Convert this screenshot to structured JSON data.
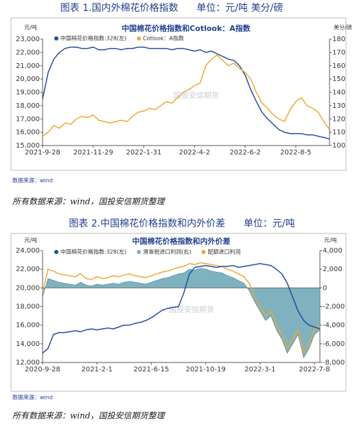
{
  "document": {
    "figure_1_caption": "图表 1.国内外棉花价格指数      单位：元/吨 美分/磅",
    "figure_1_source": "数据来源：wind",
    "figure_1_note": "所有数据来源：wind，国投安信期货整理",
    "figure_2_caption": "图表 2.中国棉花价格指数和内外价差      单位：元/吨",
    "figure_2_source": "数据来源：wind",
    "figure_2_note": "所有数据来源：wind，国投安信期货整理"
  },
  "chart_data": [
    {
      "type": "line",
      "title": "中国棉花价格指数和Cotlook：A指数",
      "watermark": "国投安信期货",
      "y_unit": "元/吨",
      "y2_unit": "美分/磅",
      "grid": false,
      "categories": [
        "2021-9-28",
        null,
        null,
        null,
        null,
        null,
        null,
        null,
        null,
        "2021-11-29",
        null,
        null,
        null,
        null,
        null,
        null,
        null,
        null,
        "2022-1-31",
        null,
        null,
        null,
        null,
        null,
        null,
        null,
        null,
        "2022-4-2",
        null,
        null,
        null,
        null,
        null,
        null,
        null,
        null,
        "2022-6-2",
        null,
        null,
        null,
        null,
        null,
        null,
        null,
        null,
        "2022-8-5",
        null,
        null,
        null,
        null,
        null,
        null
      ],
      "ylim": [
        15000,
        23000
      ],
      "yticks": [
        {
          "value": 15000,
          "label": "15,000"
        },
        {
          "value": 16000,
          "label": "16,000"
        },
        {
          "value": 17000,
          "label": "17,000"
        },
        {
          "value": 18000,
          "label": "18,000"
        },
        {
          "value": 19000,
          "label": "19,000"
        },
        {
          "value": 20000,
          "label": "20,000"
        },
        {
          "value": 21000,
          "label": "21,000"
        },
        {
          "value": 22000,
          "label": "22,000"
        },
        {
          "value": 23000,
          "label": "23,000"
        }
      ],
      "y2lim": [
        100,
        180
      ],
      "y2ticks": [
        100,
        110,
        120,
        130,
        140,
        150,
        160,
        170,
        180
      ],
      "series": [
        {
          "name": "中国棉花价格指数:328(左)",
          "color": "#1f4e9c",
          "type": "line",
          "values": [
            18500,
            20500,
            21500,
            22000,
            22300,
            22400,
            22400,
            22300,
            22300,
            22400,
            22200,
            22200,
            22300,
            22300,
            22200,
            22300,
            22300,
            22400,
            22400,
            22300,
            22300,
            22300,
            22300,
            22200,
            22300,
            22300,
            22200,
            22100,
            22200,
            22000,
            22100,
            21900,
            21700,
            21500,
            21400,
            21000,
            20300,
            19200,
            18300,
            17500,
            17000,
            16600,
            16200,
            16000,
            15900,
            15900,
            15900,
            15800,
            15800,
            15700,
            15600,
            15500
          ]
        },
        {
          "name": "Cotlook：A指数",
          "color": "#f0a830",
          "type": "line",
          "axis": "y2",
          "values": [
            107,
            110,
            115,
            113,
            117,
            116,
            120,
            122,
            121,
            123,
            119,
            118,
            117,
            118,
            119,
            118,
            122,
            125,
            126,
            128,
            127,
            130,
            133,
            132,
            136,
            140,
            142,
            145,
            147,
            160,
            165,
            168,
            164,
            160,
            162,
            158,
            155,
            150,
            140,
            132,
            128,
            123,
            120,
            118,
            127,
            133,
            136,
            130,
            128,
            125,
            118,
            112
          ]
        }
      ]
    },
    {
      "type": "line",
      "title": "中国棉花价格指数和内外价差",
      "watermark": "国投安信期货",
      "y_unit": "元/吨",
      "y2_unit": "元/吨",
      "grid": false,
      "categories": [
        "2020-9-28",
        null,
        null,
        null,
        null,
        null,
        null,
        null,
        null,
        null,
        "2021-2-1",
        null,
        null,
        null,
        null,
        null,
        null,
        null,
        null,
        null,
        "2021-6-15",
        null,
        null,
        null,
        null,
        null,
        null,
        null,
        null,
        null,
        "2021-10-19",
        null,
        null,
        null,
        null,
        null,
        null,
        null,
        null,
        null,
        "2022-3-1",
        null,
        null,
        null,
        null,
        null,
        null,
        null,
        null,
        null,
        "2022-7-8",
        null
      ],
      "ylim": [
        12000,
        24000
      ],
      "yticks": [
        {
          "value": 12000,
          "label": "12,000"
        },
        {
          "value": 14000,
          "label": "14,000"
        },
        {
          "value": 16000,
          "label": "16,000"
        },
        {
          "value": 18000,
          "label": "18,000"
        },
        {
          "value": 20000,
          "label": "20,000"
        },
        {
          "value": 22000,
          "label": "22,000"
        },
        {
          "value": 24000,
          "label": "24,000"
        }
      ],
      "y2lim": [
        -8000,
        4000
      ],
      "y2ticks": [
        {
          "value": -8000,
          "label": "-8,000"
        },
        {
          "value": -6000,
          "label": "-6,000"
        },
        {
          "value": -4000,
          "label": "-4,000"
        },
        {
          "value": -2000,
          "label": "-2,000"
        },
        0,
        {
          "value": 2000,
          "label": "2,000"
        },
        {
          "value": 4000,
          "label": "4,000"
        }
      ],
      "series": [
        {
          "name": "滑准税进口利润(右)",
          "color": "#7fb2bf",
          "type": "area",
          "axis": "y2",
          "values": [
            -1000,
            1000,
            800,
            600,
            500,
            400,
            300,
            600,
            300,
            200,
            400,
            300,
            400,
            500,
            400,
            600,
            700,
            600,
            500,
            400,
            600,
            800,
            1000,
            1100,
            1300,
            1500,
            1600,
            2000,
            1900,
            2100,
            2000,
            1800,
            1700,
            1600,
            1300,
            1100,
            800,
            500,
            -300,
            -1500,
            -2500,
            -3500,
            -3000,
            -4500,
            -5500,
            -7000,
            -6000,
            -5000,
            -7500,
            -6500,
            -5000,
            -4500
          ]
        },
        {
          "name": "配额进口利润",
          "color": "#f0a830",
          "type": "line",
          "axis": "y2",
          "values": [
            -500,
            2000,
            1800,
            1500,
            1400,
            1300,
            1200,
            1500,
            1000,
            900,
            1200,
            1000,
            1100,
            1300,
            1200,
            1400,
            1500,
            1300,
            1200,
            1100,
            1300,
            1500,
            1700,
            1800,
            2000,
            2200,
            2300,
            2600,
            2500,
            2700,
            2600,
            2500,
            2400,
            2300,
            2000,
            1800,
            1500,
            1200,
            500,
            -1000,
            -2000,
            -3000,
            -2500,
            -4000,
            -5000,
            -6500,
            -5500,
            -4500,
            -7000,
            -6000,
            -4500,
            -4000
          ]
        },
        {
          "name": "中国棉花价格指数:328(左)",
          "color": "#1f4e9c",
          "type": "line",
          "values": [
            13000,
            13500,
            15000,
            15200,
            15200,
            15300,
            15400,
            15300,
            15500,
            15600,
            15500,
            15600,
            15700,
            15600,
            15800,
            16000,
            16000,
            16200,
            16300,
            16500,
            16800,
            17200,
            17600,
            17800,
            17900,
            18000,
            19500,
            21500,
            22200,
            22300,
            22400,
            22300,
            22200,
            22300,
            22300,
            22400,
            22200,
            22300,
            22400,
            22500,
            22600,
            22500,
            22400,
            22000,
            21500,
            20500,
            19000,
            17500,
            16500,
            16000,
            15800,
            15600
          ]
        }
      ]
    }
  ]
}
